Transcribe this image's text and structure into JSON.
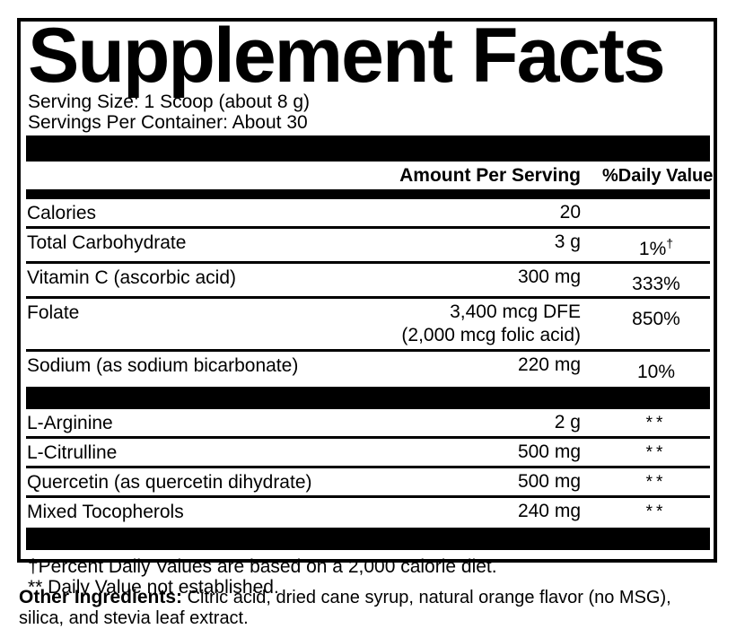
{
  "colors": {
    "ink": "#000000",
    "background": "#ffffff"
  },
  "panel": {
    "title": "Supplement Facts",
    "serving_size": "Serving Size: 1 Scoop (about 8 g)",
    "servings_per_container": "Servings Per Container: About 30",
    "header": {
      "amount": "Amount Per Serving",
      "daily_value": "%Daily Value"
    },
    "rows": [
      {
        "name": "Calories",
        "amount": "20",
        "dv": "",
        "dv_sup": ""
      },
      {
        "name": "Total Carbohydrate",
        "amount": "3 g",
        "dv": "1%",
        "dv_sup": "†"
      },
      {
        "name": "Vitamin C (ascorbic acid)",
        "amount": "300 mg",
        "dv": "333%",
        "dv_sup": ""
      },
      {
        "name": "Folate",
        "amount": "3,400 mcg DFE\n(2,000 mcg folic acid)",
        "dv": "850%",
        "dv_sup": ""
      },
      {
        "name": "Sodium (as sodium bicarbonate)",
        "amount": "220 mg",
        "dv": "10%",
        "dv_sup": ""
      }
    ],
    "rows2": [
      {
        "name": "L-Arginine",
        "amount": "2 g",
        "dv": "**"
      },
      {
        "name": "L-Citrulline",
        "amount": "500 mg",
        "dv": "**"
      },
      {
        "name": "Quercetin (as quercetin dihydrate)",
        "amount": "500 mg",
        "dv": "**"
      },
      {
        "name": "Mixed Tocopherols",
        "amount": "240 mg",
        "dv": "**"
      }
    ],
    "footnotes": [
      "†Percent Daily Values are based on a 2,000 calorie diet.",
      "** Daily Value not established."
    ]
  },
  "other_ingredients": {
    "label": "Other Ingredients:",
    "text": " Citric acid, dried cane syrup, natural orange flavor (no MSG), silica, and stevia leaf extract."
  }
}
